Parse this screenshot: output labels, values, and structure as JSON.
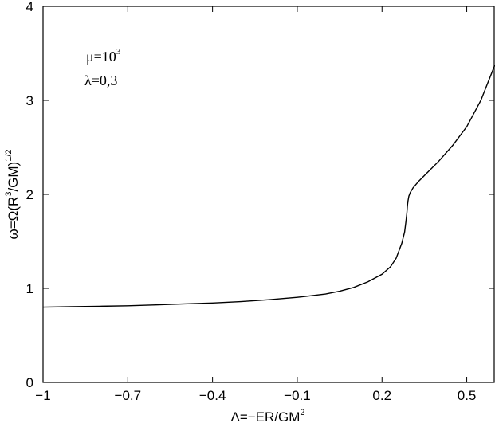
{
  "chart_data": {
    "type": "line",
    "title": "",
    "xlabel": {
      "base": "Λ=−ER/GM",
      "sup": "2"
    },
    "ylabel": {
      "pre": "ω=Ω(R",
      "sup1": "3",
      "mid": "/GM)",
      "sup2": "1/2"
    },
    "xlim": [
      -1,
      0.6
    ],
    "ylim": [
      0,
      4
    ],
    "xticks": [
      {
        "value": -1,
        "label": "−1"
      },
      {
        "value": -0.7,
        "label": "−0.7"
      },
      {
        "value": -0.4,
        "label": "−0.4"
      },
      {
        "value": -0.1,
        "label": "−0.1"
      },
      {
        "value": 0.2,
        "label": "0.2"
      },
      {
        "value": 0.5,
        "label": "0.5"
      }
    ],
    "yticks": [
      {
        "value": 0,
        "label": "0"
      },
      {
        "value": 1,
        "label": "1"
      },
      {
        "value": 2,
        "label": "2"
      },
      {
        "value": 3,
        "label": "3"
      },
      {
        "value": 4,
        "label": "4"
      }
    ],
    "grid": false,
    "legend": "none",
    "annotations": [
      {
        "base": "μ=10",
        "sup": "3"
      },
      {
        "base": "λ=0,3",
        "sup": ""
      }
    ],
    "series": [
      {
        "color": "#000000",
        "x": [
          -1.0,
          -0.9,
          -0.8,
          -0.7,
          -0.6,
          -0.5,
          -0.4,
          -0.3,
          -0.2,
          -0.1,
          0.0,
          0.05,
          0.1,
          0.15,
          0.2,
          0.23,
          0.25,
          0.27,
          0.28,
          0.285,
          0.288,
          0.29,
          0.292,
          0.295,
          0.3,
          0.31,
          0.33,
          0.35,
          0.4,
          0.45,
          0.5,
          0.55,
          0.6
        ],
        "y": [
          0.8,
          0.805,
          0.81,
          0.815,
          0.825,
          0.835,
          0.845,
          0.86,
          0.88,
          0.905,
          0.94,
          0.97,
          1.01,
          1.07,
          1.15,
          1.23,
          1.32,
          1.48,
          1.6,
          1.72,
          1.8,
          1.88,
          1.93,
          1.98,
          2.02,
          2.07,
          2.14,
          2.2,
          2.35,
          2.52,
          2.72,
          3.0,
          3.38
        ]
      }
    ]
  }
}
